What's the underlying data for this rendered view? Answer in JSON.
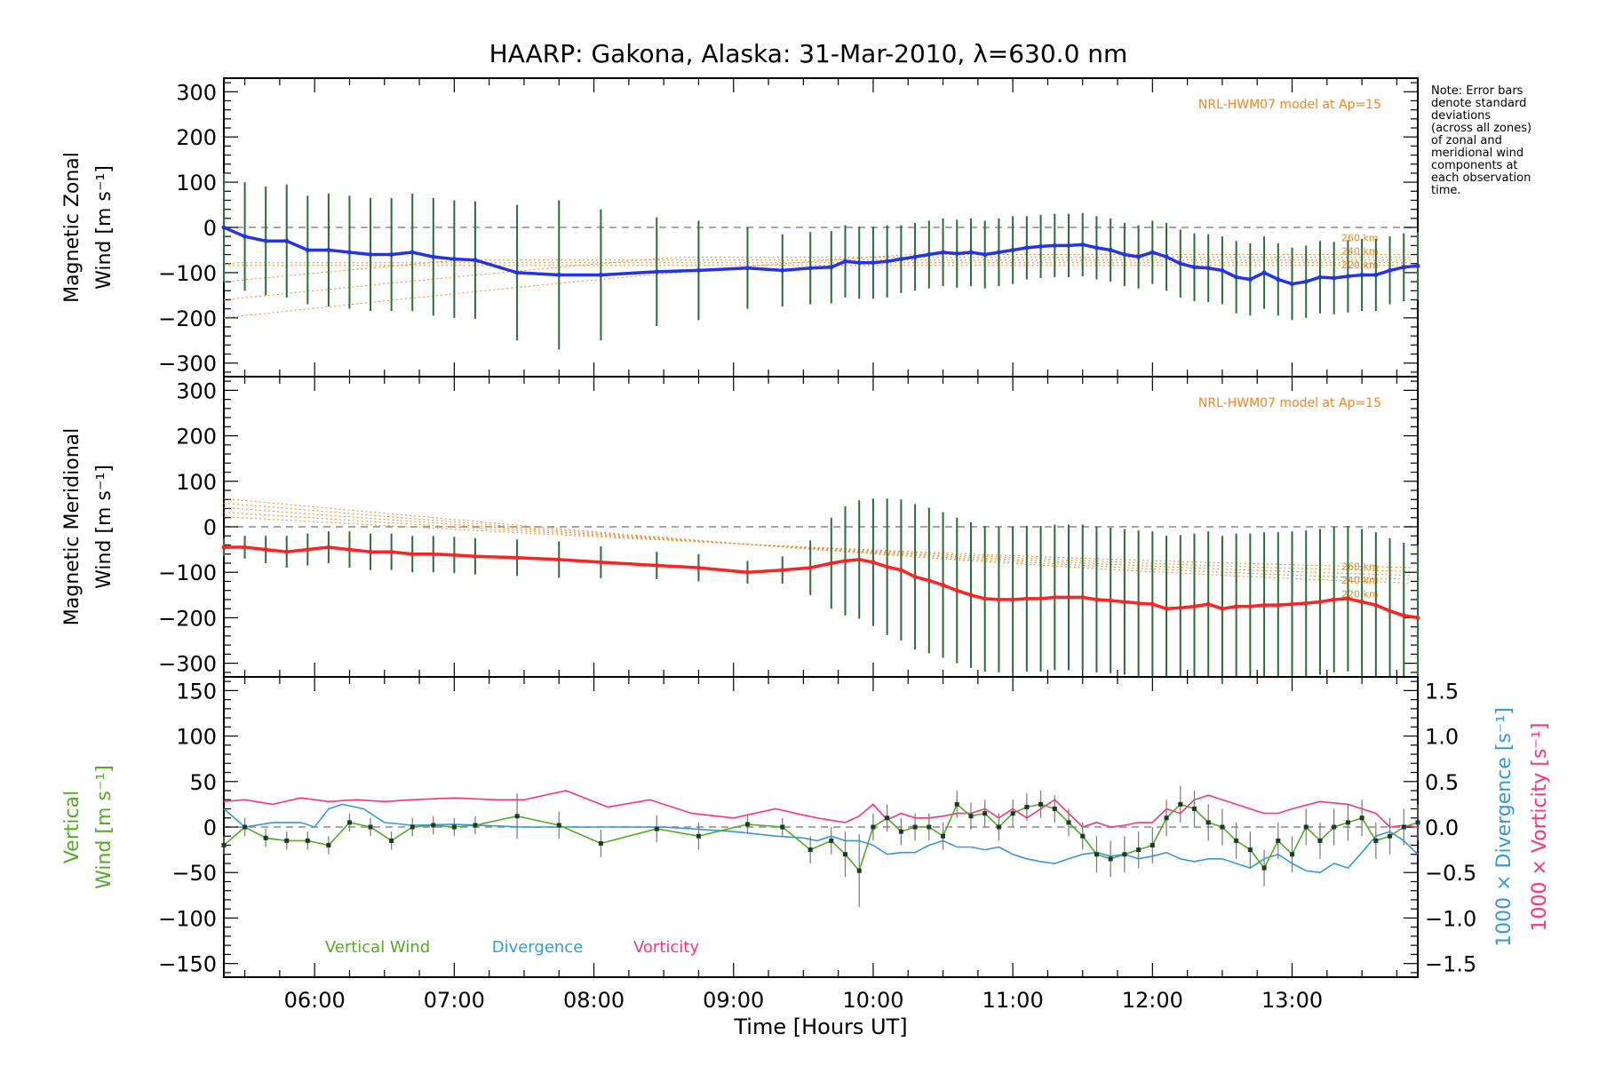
{
  "title": "HAARP: Gakona,  Alaska: 31-Mar-2010, λ=630.0 nm",
  "note": [
    "Note: Error bars",
    "denote standard",
    "deviations",
    "(across all zones)",
    "of zonal and",
    "meridional wind",
    "components at",
    "each observation",
    "time."
  ],
  "colors": {
    "zonal": "#2233ee",
    "meridional": "#ff2222",
    "model": "#ee8822",
    "vertical": "#55aa22",
    "divergence": "#3399dd",
    "vorticity": "#ff3377",
    "errorbar": "#2d6b3c",
    "zero": "#888888"
  },
  "chart_data": [
    {
      "type": "line",
      "panel": "zonal",
      "ylabel_line1": "Magnetic Zonal",
      "ylabel_line2": "Wind [m s⁻¹]",
      "ylim": [
        -330,
        330
      ],
      "xlim": [
        5.35,
        13.9
      ],
      "yticks": [
        300,
        200,
        100,
        0,
        -100,
        -200,
        -300
      ],
      "ytick_labels": [
        "300",
        "200",
        "100",
        "0",
        "−100",
        "−200",
        "−300"
      ],
      "model_label": "NRL-HWM07 model at Ap=15",
      "model_alt_labels": [
        "260 km",
        "240 km",
        "220 km"
      ],
      "series": [
        {
          "x": [
            5.35,
            5.5,
            5.65,
            5.8,
            5.95,
            6.1,
            6.25,
            6.4,
            6.55,
            6.7,
            6.85,
            7.0,
            7.15,
            7.45,
            7.75,
            8.05,
            8.45,
            8.75,
            9.1,
            9.35,
            9.55,
            9.7,
            9.8,
            9.9,
            10.0,
            10.1,
            10.2,
            10.3,
            10.4,
            10.5,
            10.6,
            10.7,
            10.8,
            10.9,
            11.0,
            11.1,
            11.2,
            11.3,
            11.4,
            11.5,
            11.6,
            11.7,
            11.8,
            11.9,
            12.0,
            12.1,
            12.2,
            12.3,
            12.4,
            12.5,
            12.6,
            12.7,
            12.8,
            12.9,
            13.0,
            13.1,
            13.2,
            13.3,
            13.4,
            13.5,
            13.6,
            13.7,
            13.8,
            13.9
          ],
          "values": [
            0,
            -20,
            -30,
            -30,
            -50,
            -50,
            -55,
            -60,
            -60,
            -55,
            -65,
            -70,
            -72,
            -100,
            -105,
            -105,
            -98,
            -95,
            -90,
            -95,
            -90,
            -88,
            -75,
            -78,
            -78,
            -75,
            -70,
            -65,
            -60,
            -55,
            -58,
            -55,
            -60,
            -55,
            -50,
            -45,
            -42,
            -40,
            -40,
            -38,
            -45,
            -50,
            -60,
            -65,
            -55,
            -65,
            -80,
            -88,
            -90,
            -95,
            -110,
            -115,
            -100,
            -115,
            -125,
            -120,
            -110,
            -112,
            -108,
            -105,
            -105,
            -95,
            -88,
            -85
          ],
          "errors": [
            120,
            120,
            120,
            125,
            120,
            125,
            125,
            125,
            125,
            130,
            130,
            130,
            130,
            150,
            165,
            145,
            120,
            110,
            90,
            80,
            80,
            80,
            80,
            80,
            80,
            80,
            75,
            75,
            75,
            75,
            75,
            75,
            75,
            75,
            75,
            70,
            70,
            70,
            70,
            70,
            70,
            70,
            70,
            70,
            70,
            75,
            75,
            75,
            75,
            75,
            80,
            80,
            80,
            80,
            80,
            80,
            80,
            80,
            80,
            80,
            80,
            75,
            75,
            75
          ]
        }
      ]
    },
    {
      "type": "line",
      "panel": "meridional",
      "ylabel_line1": "Magnetic Meridional",
      "ylabel_line2": "Wind [m s⁻¹]",
      "ylim": [
        -330,
        330
      ],
      "yticks": [
        300,
        200,
        100,
        0,
        -100,
        -200,
        -300
      ],
      "ytick_labels": [
        "300",
        "200",
        "100",
        "0",
        "−100",
        "−200",
        "−300"
      ],
      "model_label": "NRL-HWM07 model at Ap=15",
      "model_alt_labels": [
        "260 km",
        "240 km",
        "220 km"
      ],
      "series": [
        {
          "x": [
            5.35,
            5.5,
            5.65,
            5.8,
            5.95,
            6.1,
            6.25,
            6.4,
            6.55,
            6.7,
            6.85,
            7.0,
            7.15,
            7.45,
            7.75,
            8.05,
            8.45,
            8.75,
            9.1,
            9.35,
            9.55,
            9.7,
            9.8,
            9.9,
            10.0,
            10.1,
            10.2,
            10.3,
            10.4,
            10.5,
            10.6,
            10.7,
            10.8,
            10.9,
            11.0,
            11.1,
            11.2,
            11.3,
            11.4,
            11.5,
            11.6,
            11.7,
            11.8,
            11.9,
            12.0,
            12.1,
            12.2,
            12.3,
            12.4,
            12.5,
            12.6,
            12.7,
            12.8,
            12.9,
            13.0,
            13.1,
            13.2,
            13.3,
            13.4,
            13.5,
            13.6,
            13.7,
            13.8,
            13.9
          ],
          "values": [
            -45,
            -45,
            -50,
            -55,
            -50,
            -45,
            -50,
            -55,
            -55,
            -60,
            -60,
            -62,
            -65,
            -68,
            -72,
            -78,
            -85,
            -90,
            -100,
            -95,
            -90,
            -80,
            -75,
            -72,
            -78,
            -88,
            -95,
            -110,
            -118,
            -128,
            -140,
            -150,
            -158,
            -160,
            -160,
            -158,
            -158,
            -155,
            -155,
            -155,
            -160,
            -162,
            -165,
            -168,
            -170,
            -180,
            -178,
            -175,
            -170,
            -180,
            -175,
            -175,
            -172,
            -172,
            -170,
            -168,
            -165,
            -160,
            -158,
            -165,
            -172,
            -185,
            -195,
            -200
          ],
          "errors": [
            20,
            25,
            30,
            35,
            35,
            35,
            40,
            40,
            40,
            40,
            40,
            40,
            40,
            40,
            40,
            35,
            30,
            30,
            25,
            30,
            60,
            100,
            120,
            130,
            140,
            150,
            155,
            160,
            160,
            160,
            160,
            160,
            160,
            160,
            160,
            160,
            160,
            160,
            160,
            160,
            160,
            160,
            160,
            160,
            160,
            160,
            160,
            160,
            160,
            160,
            160,
            160,
            160,
            160,
            160,
            160,
            160,
            160,
            160,
            160,
            160,
            160,
            160,
            160
          ]
        }
      ]
    },
    {
      "type": "line",
      "panel": "vertical",
      "ylabel_left_line1": "Vertical",
      "ylabel_left_line2": "Wind [m s⁻¹]",
      "ylabel_right1": "1000 × Divergence [s⁻¹]",
      "ylabel_right2": "1000 × Vorticity [s⁻¹]",
      "ylim": [
        -165,
        165
      ],
      "y2lim": [
        -1.65,
        1.65
      ],
      "yticks": [
        150,
        100,
        50,
        0,
        -50,
        -100,
        -150
      ],
      "ytick_labels": [
        "150",
        "100",
        "50",
        "0",
        "−50",
        "−100",
        "−150"
      ],
      "y2ticks": [
        1.5,
        1.0,
        0.5,
        0.0,
        -0.5,
        -1.0,
        -1.5
      ],
      "y2tick_labels": [
        "1.5",
        "1.0",
        "0.5",
        "0.0",
        "−0.5",
        "−1.0",
        "−1.5"
      ],
      "xticks": [
        6,
        7,
        8,
        9,
        10,
        11,
        12,
        13
      ],
      "xtick_labels": [
        "06:00",
        "07:00",
        "08:00",
        "09:00",
        "10:00",
        "11:00",
        "12:00",
        "13:00"
      ],
      "xlabel": "Time [Hours UT]",
      "legend": [
        "Vertical Wind",
        "Divergence",
        "Vorticity"
      ],
      "series": [
        {
          "name": "Vertical Wind",
          "x": [
            5.35,
            5.5,
            5.65,
            5.8,
            5.95,
            6.1,
            6.25,
            6.4,
            6.55,
            6.7,
            6.85,
            7.0,
            7.15,
            7.45,
            7.75,
            8.05,
            8.45,
            8.75,
            9.1,
            9.35,
            9.55,
            9.7,
            9.8,
            9.9,
            10.0,
            10.1,
            10.2,
            10.3,
            10.4,
            10.5,
            10.6,
            10.7,
            10.8,
            10.9,
            11.0,
            11.1,
            11.2,
            11.3,
            11.4,
            11.5,
            11.6,
            11.7,
            11.8,
            11.9,
            12.0,
            12.1,
            12.2,
            12.3,
            12.4,
            12.5,
            12.6,
            12.7,
            12.8,
            12.9,
            13.0,
            13.1,
            13.2,
            13.3,
            13.4,
            13.5,
            13.6,
            13.7,
            13.8,
            13.9
          ],
          "values": [
            -20,
            0,
            -12,
            -15,
            -15,
            -20,
            5,
            0,
            -15,
            0,
            2,
            0,
            2,
            12,
            2,
            -18,
            -2,
            -10,
            3,
            0,
            -25,
            -15,
            -30,
            -48,
            0,
            10,
            -5,
            0,
            0,
            -10,
            25,
            12,
            15,
            0,
            15,
            22,
            25,
            20,
            5,
            -10,
            -30,
            -35,
            -30,
            -25,
            -20,
            10,
            25,
            20,
            5,
            0,
            -15,
            -25,
            -45,
            -15,
            -30,
            0,
            -15,
            0,
            5,
            10,
            -15,
            -10,
            0,
            5
          ],
          "errors": [
            10,
            10,
            10,
            10,
            10,
            10,
            10,
            10,
            10,
            10,
            10,
            10,
            10,
            25,
            15,
            15,
            15,
            15,
            10,
            10,
            15,
            15,
            25,
            40,
            15,
            15,
            15,
            15,
            15,
            15,
            15,
            15,
            15,
            15,
            15,
            15,
            15,
            15,
            15,
            15,
            20,
            20,
            20,
            20,
            20,
            20,
            20,
            20,
            20,
            20,
            20,
            20,
            20,
            20,
            20,
            20,
            20,
            20,
            20,
            20,
            20,
            20,
            20,
            20
          ]
        },
        {
          "name": "Divergence",
          "x": [
            5.35,
            5.5,
            5.7,
            5.9,
            6.0,
            6.1,
            6.2,
            6.35,
            6.5,
            6.7,
            7.0,
            7.5,
            8.0,
            8.5,
            9.0,
            9.3,
            9.5,
            9.6,
            9.7,
            9.8,
            9.9,
            10.0,
            10.1,
            10.2,
            10.3,
            10.4,
            10.5,
            10.6,
            10.7,
            10.8,
            10.9,
            11.0,
            11.1,
            11.2,
            11.3,
            11.4,
            11.5,
            11.6,
            11.7,
            11.8,
            11.9,
            12.0,
            12.1,
            12.2,
            12.3,
            12.4,
            12.5,
            12.6,
            12.7,
            12.8,
            12.9,
            13.0,
            13.1,
            13.2,
            13.3,
            13.4,
            13.5,
            13.6,
            13.7,
            13.8,
            13.9
          ],
          "values": [
            0.2,
            0.0,
            0.05,
            0.05,
            0.0,
            0.2,
            0.25,
            0.2,
            0.05,
            0.02,
            0.03,
            0.0,
            0.0,
            0.0,
            -0.05,
            -0.1,
            -0.12,
            -0.15,
            -0.1,
            -0.15,
            -0.15,
            -0.2,
            -0.3,
            -0.28,
            -0.28,
            -0.2,
            -0.15,
            -0.22,
            -0.22,
            -0.25,
            -0.22,
            -0.3,
            -0.35,
            -0.38,
            -0.4,
            -0.35,
            -0.3,
            -0.28,
            -0.32,
            -0.3,
            -0.35,
            -0.32,
            -0.28,
            -0.35,
            -0.38,
            -0.35,
            -0.35,
            -0.4,
            -0.45,
            -0.35,
            -0.3,
            -0.4,
            -0.48,
            -0.5,
            -0.4,
            -0.45,
            -0.28,
            -0.1,
            -0.05,
            -0.15,
            -0.3
          ]
        },
        {
          "name": "Vorticity",
          "x": [
            5.35,
            5.5,
            5.7,
            5.9,
            6.1,
            6.3,
            6.5,
            6.7,
            7.0,
            7.3,
            7.5,
            7.8,
            8.1,
            8.4,
            8.7,
            9.0,
            9.3,
            9.6,
            9.8,
            9.9,
            10.0,
            10.1,
            10.2,
            10.3,
            10.4,
            10.5,
            10.6,
            10.7,
            10.8,
            10.9,
            11.0,
            11.1,
            11.2,
            11.3,
            11.4,
            11.5,
            11.6,
            11.7,
            11.8,
            11.9,
            12.0,
            12.1,
            12.2,
            12.3,
            12.4,
            12.5,
            12.6,
            12.7,
            12.8,
            12.9,
            13.0,
            13.2,
            13.4,
            13.6,
            13.7,
            13.8,
            13.9
          ],
          "values": [
            0.28,
            0.3,
            0.25,
            0.32,
            0.28,
            0.3,
            0.28,
            0.3,
            0.32,
            0.3,
            0.3,
            0.4,
            0.22,
            0.3,
            0.15,
            0.1,
            0.2,
            0.1,
            0.05,
            0.12,
            0.25,
            0.08,
            0.15,
            0.1,
            0.1,
            0.12,
            0.15,
            0.15,
            0.2,
            0.1,
            0.2,
            0.1,
            0.2,
            0.3,
            0.15,
            0.0,
            0.05,
            0.0,
            0.02,
            0.05,
            0.05,
            0.2,
            0.15,
            0.3,
            0.35,
            0.3,
            0.25,
            0.2,
            0.15,
            0.15,
            0.2,
            0.28,
            0.25,
            0.15,
            0.0,
            0.02,
            0.0
          ]
        }
      ]
    }
  ]
}
